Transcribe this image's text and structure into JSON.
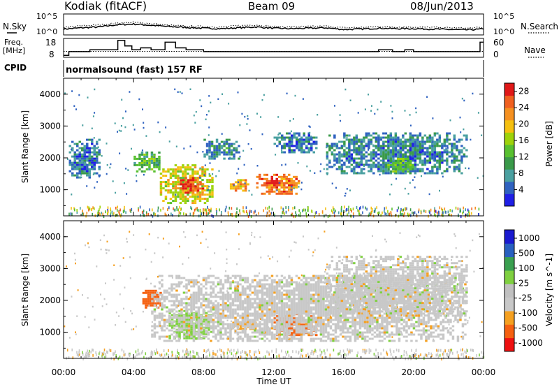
{
  "header": {
    "station": "Kodiak (fitACF)",
    "beam": "Beam 09",
    "date": "08/Jun/2013"
  },
  "noise_panel": {
    "left_label": "N.Sky",
    "right_label": "N.Search",
    "y_tick_labels": [
      "10^5",
      "10^0"
    ],
    "right_tick_labels": [
      "10^5",
      "10^0"
    ]
  },
  "freq_panel": {
    "left_label_line1": "Freq.",
    "left_label_line2": "[MHz]",
    "y_tick_labels": [
      "18",
      "8"
    ],
    "right_label": "Nave",
    "right_tick_labels": [
      "60",
      "0"
    ]
  },
  "cpid_panel": {
    "label": "CPID",
    "text": "normalsound (fast) 157 RF"
  },
  "colors": {
    "power": [
      "#1f1fe6",
      "#2f62c0",
      "#4aa0a0",
      "#3a9a4a",
      "#58c030",
      "#9ed20a",
      "#f5c010",
      "#f59020",
      "#f06020",
      "#e01818"
    ],
    "velocity": [
      "#ee1010",
      "#f56010",
      "#f5a020",
      "#c8c8c8",
      "#c0c0c0",
      "#7fd040",
      "#3aa050",
      "#2860c0",
      "#1a1ad0"
    ]
  },
  "chart_data": [
    {
      "type": "line",
      "panel": "noise",
      "title": "",
      "series": [
        {
          "name": "N.Sky",
          "x": [
            0,
            1,
            2,
            3,
            4,
            5,
            6,
            7,
            8,
            9,
            10,
            11,
            12,
            13,
            14,
            15,
            16,
            17,
            18,
            19,
            20,
            21,
            22,
            23,
            24
          ],
          "y": [
            1.4,
            1.7,
            1.9,
            2.4,
            2.6,
            2.3,
            2.0,
            1.8,
            1.6,
            1.5,
            1.7,
            1.9,
            1.6,
            1.5,
            1.6,
            1.7,
            1.3,
            1.4,
            1.6,
            1.5,
            1.5,
            1.4,
            1.3,
            1.2,
            1.4
          ]
        },
        {
          "name": "N.Search",
          "x": [
            0,
            1,
            2,
            3,
            4,
            5,
            6,
            7,
            8,
            9,
            10,
            11,
            12,
            13,
            14,
            15,
            16,
            17,
            18,
            19,
            20,
            21,
            22,
            23,
            24
          ],
          "y": [
            1.8,
            2.2,
            2.4,
            2.8,
            3.0,
            2.7,
            2.3,
            2.1,
            2.0,
            1.9,
            2.2,
            2.4,
            2.0,
            1.9,
            2.0,
            2.1,
            1.7,
            1.8,
            2.0,
            1.9,
            1.9,
            1.8,
            1.7,
            1.6,
            1.8
          ]
        }
      ],
      "xlim": [
        0,
        24
      ],
      "ylim": [
        0,
        5
      ],
      "yscale": "log10"
    },
    {
      "type": "line",
      "panel": "frequency",
      "title": "",
      "series": [
        {
          "name": "Freq.",
          "x": [
            0,
            0.3,
            1.0,
            1.5,
            2.2,
            2.8,
            3.1,
            3.5,
            3.9,
            4.4,
            5.0,
            5.8,
            6.4,
            7.0,
            7.5,
            8.0,
            9.0,
            10.0,
            11.0,
            12.0,
            12.4,
            13.0,
            14.0,
            14.6,
            15.0,
            16.0,
            17.0,
            18.0,
            18.8,
            19.5,
            20.0,
            21.0,
            22.0,
            22.5,
            23.0,
            23.8,
            24.0
          ],
          "y": [
            9,
            11,
            11,
            12,
            12,
            12,
            17,
            14,
            12,
            13,
            12,
            16,
            13,
            12,
            12,
            11,
            11,
            11,
            11,
            11,
            11,
            11,
            11,
            11,
            11,
            11,
            11,
            12,
            11,
            12,
            11,
            11,
            11,
            11,
            11,
            16,
            16
          ]
        },
        {
          "name": "Nave",
          "x": [
            0,
            24
          ],
          "y": [
            19,
            19
          ]
        }
      ],
      "xlim": [
        0,
        24
      ],
      "ylim": [
        8,
        18
      ],
      "y2lim": [
        0,
        60
      ]
    },
    {
      "type": "heatmap",
      "panel": "power",
      "title": "",
      "xlabel": "",
      "ylabel": "Slant Range [km]",
      "xlim": [
        0,
        24
      ],
      "ylim": [
        180,
        4500
      ],
      "y_ticks": [
        1000,
        2000,
        3000,
        4000
      ],
      "colorbar_label": "Power [dB]",
      "colorbar_ticks": [
        "28",
        "24",
        "20",
        "16",
        "12",
        "8",
        "4"
      ],
      "colorbar_range": [
        0,
        30
      ],
      "features": [
        {
          "t_start": 0.3,
          "t_end": 2.0,
          "range_start": 1400,
          "range_end": 2600,
          "value": 6
        },
        {
          "t_start": 4.0,
          "t_end": 5.5,
          "range_start": 1600,
          "range_end": 2200,
          "value": 12
        },
        {
          "t_start": 5.5,
          "t_end": 8.5,
          "range_start": 600,
          "range_end": 1800,
          "value": 18
        },
        {
          "t_start": 6.5,
          "t_end": 8.0,
          "range_start": 900,
          "range_end": 1400,
          "value": 26
        },
        {
          "t_start": 8.0,
          "t_end": 10.0,
          "range_start": 2000,
          "range_end": 2600,
          "value": 8
        },
        {
          "t_start": 9.5,
          "t_end": 10.5,
          "range_start": 1000,
          "range_end": 1400,
          "value": 22
        },
        {
          "t_start": 11.0,
          "t_end": 13.5,
          "range_start": 900,
          "range_end": 1500,
          "value": 24
        },
        {
          "t_start": 12.0,
          "t_end": 14.5,
          "range_start": 2200,
          "range_end": 2800,
          "value": 6
        },
        {
          "t_start": 15.0,
          "t_end": 23.0,
          "range_start": 1500,
          "range_end": 2800,
          "value": 7
        },
        {
          "t_start": 18.5,
          "t_end": 20.0,
          "range_start": 1600,
          "range_end": 2000,
          "value": 14
        }
      ]
    },
    {
      "type": "heatmap",
      "panel": "velocity",
      "title": "",
      "xlabel": "Time UT",
      "ylabel": "Slant Range [km]",
      "xlim": [
        0,
        24
      ],
      "ylim": [
        180,
        4500
      ],
      "x_tick_labels": [
        "00:00",
        "04:00",
        "08:00",
        "12:00",
        "16:00",
        "20:00",
        "00:00"
      ],
      "y_ticks": [
        1000,
        2000,
        3000,
        4000
      ],
      "colorbar_label": "Velocity [m s^-1]",
      "colorbar_ticks": [
        "1000",
        "500",
        "100",
        "25",
        "-25",
        "-100",
        "-500",
        "-1000"
      ],
      "features": [
        {
          "t_start": 4.5,
          "t_end": 5.5,
          "range_start": 1800,
          "range_end": 2400,
          "value": -500
        },
        {
          "t_start": 6.0,
          "t_end": 8.5,
          "range_start": 800,
          "range_end": 1700,
          "value": 100
        },
        {
          "t_start": 9.5,
          "t_end": 11.0,
          "range_start": 1100,
          "range_end": 1400,
          "value": -100
        },
        {
          "t_start": 12.0,
          "t_end": 14.5,
          "range_start": 900,
          "range_end": 1600,
          "value": -500
        },
        {
          "t_start": 5.0,
          "t_end": 23.0,
          "range_start": 700,
          "range_end": 2800,
          "value": 0
        },
        {
          "t_start": 15.0,
          "t_end": 23.0,
          "range_start": 1500,
          "range_end": 3400,
          "value": 0
        }
      ]
    }
  ]
}
